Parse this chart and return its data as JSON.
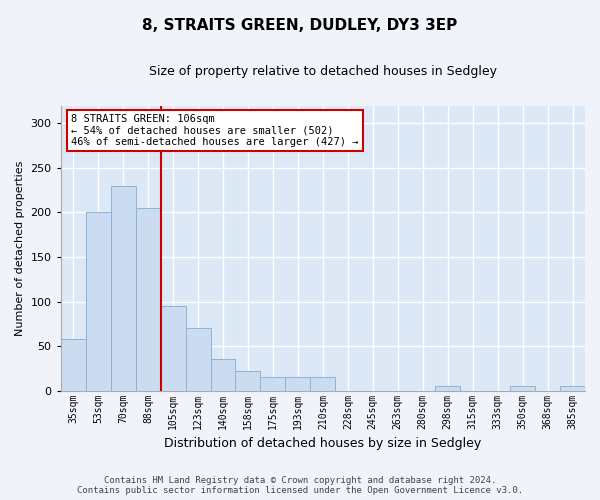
{
  "title": "8, STRAITS GREEN, DUDLEY, DY3 3EP",
  "subtitle": "Size of property relative to detached houses in Sedgley",
  "xlabel": "Distribution of detached houses by size in Sedgley",
  "ylabel": "Number of detached properties",
  "bar_color": "#ccdcf0",
  "bar_edge_color": "#8ab4d8",
  "background_color": "#dce8f5",
  "grid_color": "#ffffff",
  "fig_facecolor": "#f0f4fa",
  "categories": [
    "35sqm",
    "53sqm",
    "70sqm",
    "88sqm",
    "105sqm",
    "123sqm",
    "140sqm",
    "158sqm",
    "175sqm",
    "193sqm",
    "210sqm",
    "228sqm",
    "245sqm",
    "263sqm",
    "280sqm",
    "298sqm",
    "315sqm",
    "333sqm",
    "350sqm",
    "368sqm",
    "385sqm"
  ],
  "values": [
    58,
    200,
    230,
    205,
    95,
    70,
    35,
    22,
    15,
    15,
    15,
    0,
    0,
    0,
    0,
    5,
    0,
    0,
    5,
    0,
    5
  ],
  "ylim": [
    0,
    320
  ],
  "yticks": [
    0,
    50,
    100,
    150,
    200,
    250,
    300
  ],
  "vline_x": 3.5,
  "vline_color": "#cc0000",
  "annotation_text": "8 STRAITS GREEN: 106sqm\n← 54% of detached houses are smaller (502)\n46% of semi-detached houses are larger (427) →",
  "annotation_box_facecolor": "#ffffff",
  "annotation_box_edgecolor": "#cc0000",
  "annotation_fontsize": 7.5,
  "title_fontsize": 11,
  "subtitle_fontsize": 9,
  "ylabel_fontsize": 8,
  "xlabel_fontsize": 9,
  "tick_fontsize": 7,
  "footer_line1": "Contains HM Land Registry data © Crown copyright and database right 2024.",
  "footer_line2": "Contains public sector information licensed under the Open Government Licence v3.0.",
  "footer_fontsize": 6.5
}
